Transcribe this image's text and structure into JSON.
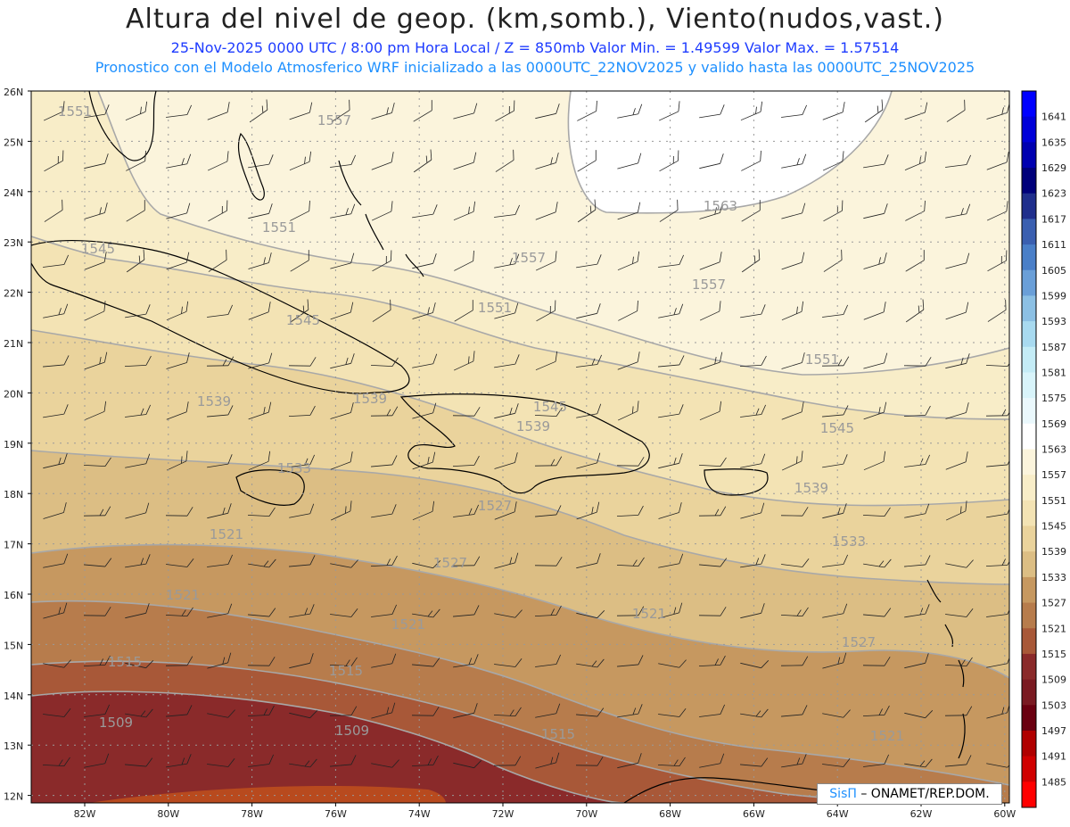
{
  "header": {
    "title": "Altura del nivel de geop. (km,somb.), Viento(nudos,vast.)",
    "line2": "25-Nov-2025  0000 UTC / 8:00 pm Hora Local / Z = 850mb     Valor Min. = 1.49599  Valor Max. = 1.57514",
    "line3": "Pronostico con el Modelo Atmosferico WRF inicializado a las 0000UTC_22NOV2025 y valido hasta las  0000UTC_25NOV2025"
  },
  "axes": {
    "lat_labels": [
      "26N",
      "25N",
      "24N",
      "23N",
      "22N",
      "21N",
      "20N",
      "19N",
      "18N",
      "17N",
      "16N",
      "15N",
      "14N",
      "13N",
      "12N"
    ],
    "lon_labels": [
      "82W",
      "80W",
      "78W",
      "76W",
      "74W",
      "72W",
      "70W",
      "68W",
      "66W",
      "64W",
      "62W",
      "60W"
    ]
  },
  "colorbar": {
    "levels": [
      "1641",
      "1635",
      "1629",
      "1623",
      "1617",
      "1611",
      "1605",
      "1599",
      "1593",
      "1587",
      "1581",
      "1575",
      "1569",
      "1563",
      "1557",
      "1551",
      "1545",
      "1539",
      "1533",
      "1527",
      "1521",
      "1515",
      "1509",
      "1503",
      "1497",
      "1491",
      "1485"
    ],
    "colors": [
      "#0000ff",
      "#0000d8",
      "#0000b0",
      "#00007a",
      "#1f2e8c",
      "#3a5fb0",
      "#4a7fc8",
      "#6a9fd8",
      "#8cc0e4",
      "#a8daf0",
      "#c4ecf6",
      "#d8f4fa",
      "#eaf8fc",
      "#ffffff",
      "#fbf4dc",
      "#f8edc8",
      "#f3e3b4",
      "#ead39c",
      "#dcbe84",
      "#c69860",
      "#b77c4c",
      "#a85838",
      "#8a2a2a",
      "#7a1a22",
      "#6a0010",
      "#b00000",
      "#d00000",
      "#ff0000"
    ]
  },
  "contour_labels": [
    "1551",
    "1557",
    "1563",
    "1551",
    "1557",
    "1545",
    "1551",
    "1557",
    "1545",
    "1551",
    "1539",
    "1539",
    "1545",
    "1539",
    "1545",
    "1533",
    "1527",
    "1539",
    "1533",
    "1521",
    "1527",
    "1521",
    "1521",
    "1527",
    "1515",
    "1515",
    "1521",
    "1509",
    "1509",
    "1515",
    "1521"
  ],
  "credit": {
    "sis": "SisΠ",
    "org": "– ONAMET/REP.DOM."
  }
}
